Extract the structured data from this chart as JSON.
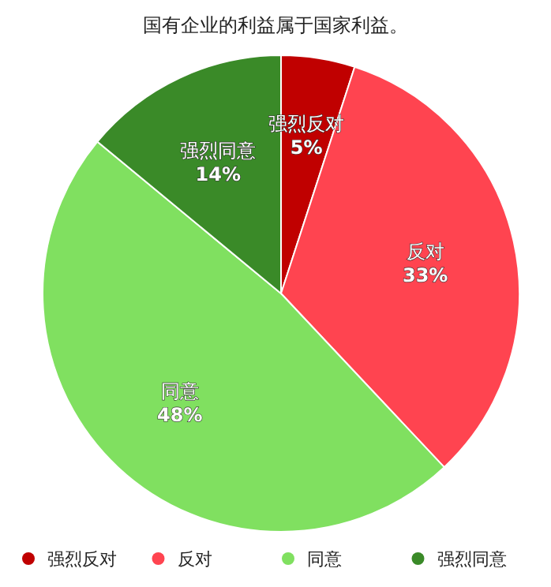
{
  "chart_data": {
    "type": "pie",
    "title": "国有企业的利益属于国家利益。",
    "categories": [
      "强烈反对",
      "反对",
      "同意",
      "强烈同意"
    ],
    "values": [
      5,
      33,
      48,
      14
    ],
    "colors": [
      "#c00000",
      "#ff4450",
      "#80e060",
      "#3a8a28"
    ],
    "value_labels": [
      "5%",
      "33%",
      "48%",
      "14%"
    ],
    "legend": "bottom"
  }
}
